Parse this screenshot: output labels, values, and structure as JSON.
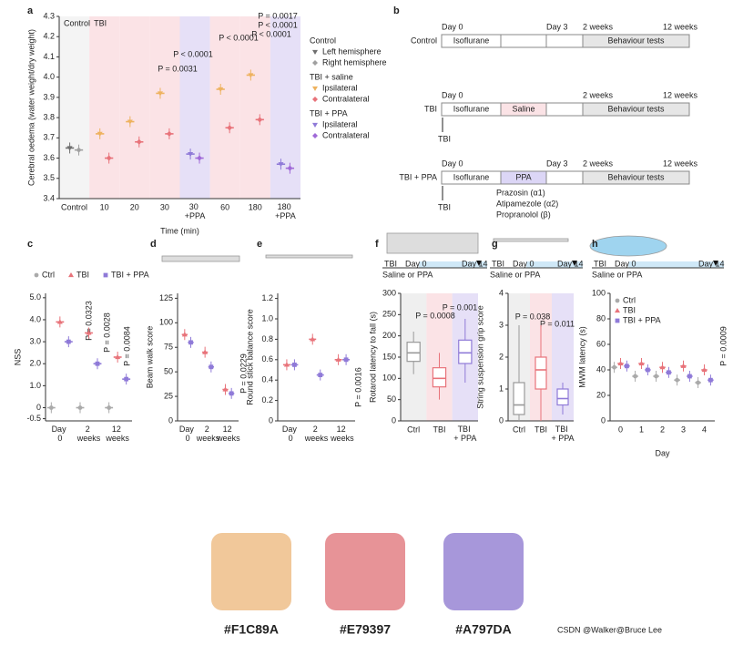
{
  "chart_data": [
    {
      "type": "strip",
      "panel": "a",
      "ylabel": "Cerebral oedema (water weight/dry weight)",
      "xlabel": "Time (min)",
      "regions": [
        "Control",
        "TBI"
      ],
      "categories": [
        "Control",
        "10",
        "20",
        "30",
        "30 +PPA",
        "60",
        "180",
        "180 +PPA"
      ],
      "ylim": [
        3.4,
        4.3
      ],
      "yticks": [
        3.4,
        3.5,
        3.6,
        3.7,
        3.8,
        3.9,
        {
          "value": 4,
          "label": "4.0"
        },
        4.1,
        4.2,
        4.3
      ],
      "legend_groups": [
        "Control",
        "TBI + saline",
        "TBI + PPA"
      ],
      "series": [
        {
          "name": "Left hemisphere",
          "color": "#6f6f6f",
          "marker": "triangle-down",
          "values": [
            3.65,
            null,
            null,
            null,
            null,
            null,
            null,
            null
          ]
        },
        {
          "name": "Right hemisphere",
          "color": "#a0a0a0",
          "marker": "diamond",
          "values": [
            3.64,
            null,
            null,
            null,
            null,
            null,
            null,
            null
          ]
        },
        {
          "name": "Ipsilateral",
          "color": "#eeb25f",
          "marker": "triangle-down",
          "values": [
            null,
            3.72,
            3.78,
            3.92,
            null,
            3.94,
            4.01,
            null
          ]
        },
        {
          "name": "Contralateral",
          "color": "#e8737a",
          "marker": "diamond",
          "values": [
            null,
            3.6,
            3.68,
            3.72,
            null,
            3.75,
            3.79,
            null
          ]
        },
        {
          "name": "Ipsilateral",
          "color": "#8f7ad8",
          "marker": "triangle-down",
          "values": [
            null,
            null,
            null,
            null,
            3.62,
            null,
            null,
            3.57
          ]
        },
        {
          "name": "Contralateral",
          "color": "#a06ad8",
          "marker": "diamond",
          "values": [
            null,
            null,
            null,
            null,
            3.6,
            null,
            null,
            3.55
          ]
        }
      ],
      "annotations": [
        "P = 0.0031",
        "P < 0.0001",
        "P < 0.0001",
        "P = 0.0017",
        "P < 0.0001",
        "P < 0.0001"
      ]
    },
    {
      "type": "strip",
      "panel": "c",
      "ylabel": "NSS",
      "categories": [
        "Day 0",
        "2 weeks",
        "12 weeks"
      ],
      "ylim": [
        -0.6,
        5.2
      ],
      "yticks": [
        -0.5,
        0,
        {
          "value": 1,
          "label": "1.0"
        },
        {
          "value": 2,
          "label": "2.0"
        },
        {
          "value": 3,
          "label": "3.0"
        },
        {
          "value": 4,
          "label": "4.0"
        },
        {
          "value": 5,
          "label": "5.0"
        }
      ],
      "series": [
        {
          "name": "Ctrl",
          "color": "#aaaaaa",
          "marker": "circle",
          "values": [
            0,
            0,
            0
          ]
        },
        {
          "name": "TBI",
          "color": "#e8737a",
          "marker": "triangle",
          "values": [
            3.9,
            3.4,
            2.3
          ]
        },
        {
          "name": "TBI + PPA",
          "color": "#8f7ad8",
          "marker": "square",
          "values": [
            3,
            2,
            1.3
          ]
        }
      ],
      "annotations": [
        "P = 0.0323",
        "P = 0.0028",
        "P = 0.0084"
      ]
    },
    {
      "type": "strip",
      "panel": "d",
      "ylabel": "Beam walk score",
      "categories": [
        "Day 0",
        "2 weeks",
        "12 weeks"
      ],
      "ylim": [
        0,
        130
      ],
      "yticks": [
        0,
        25,
        50,
        75,
        100,
        125
      ],
      "series": [
        {
          "name": "TBI",
          "color": "#e8737a",
          "marker": "triangle",
          "values": [
            88,
            70,
            32
          ]
        },
        {
          "name": "TBI + PPA",
          "color": "#8f7ad8",
          "marker": "square",
          "values": [
            80,
            55,
            28
          ]
        }
      ],
      "annotations": [
        "P = 0.0229"
      ]
    },
    {
      "type": "strip",
      "panel": "e",
      "ylabel": "Round stick balance score",
      "categories": [
        "Day 0",
        "2 weeks",
        "12 weeks"
      ],
      "ylim": [
        0,
        1.25
      ],
      "yticks": [
        0,
        0.2,
        0.4,
        0.6,
        0.8,
        {
          "value": 1,
          "label": "1.0"
        },
        1.2
      ],
      "series": [
        {
          "name": "TBI",
          "color": "#e8737a",
          "marker": "triangle",
          "values": [
            0.55,
            0.8,
            0.6
          ]
        },
        {
          "name": "TBI + PPA",
          "color": "#8f7ad8",
          "marker": "square",
          "values": [
            0.55,
            0.45,
            0.6
          ]
        }
      ],
      "annotations": [
        "P = 0.0016"
      ]
    },
    {
      "type": "box",
      "panel": "f",
      "ylabel": "Rotarod latency to fall (s)",
      "categories": [
        "Ctrl",
        "TBI",
        "TBI + PPA"
      ],
      "colors": [
        "#999999",
        "#e8737a",
        "#8f7ad8"
      ],
      "timeline": [
        "TBI",
        "Day 0",
        "Day 14",
        "Saline or PPA"
      ],
      "ylim": [
        0,
        300
      ],
      "yticks": [
        0,
        50,
        100,
        150,
        200,
        250,
        300
      ],
      "values": [
        160,
        100,
        160
      ],
      "q1": [
        140,
        80,
        135
      ],
      "q3": [
        185,
        125,
        190
      ],
      "min": [
        110,
        50,
        90
      ],
      "max": [
        210,
        160,
        240
      ],
      "annotations": [
        "P = 0.0008",
        "P = 0.001"
      ]
    },
    {
      "type": "box",
      "panel": "g",
      "ylabel": "String suspension grip score",
      "categories": [
        "Ctrl",
        "TBI",
        "TBI + PPA"
      ],
      "colors": [
        "#999999",
        "#e8737a",
        "#8f7ad8"
      ],
      "timeline": [
        "TBI",
        "Day 0",
        "Day 14",
        "Saline or PPA"
      ],
      "ylim": [
        0,
        4
      ],
      "yticks": [
        0,
        1,
        2,
        3,
        4
      ],
      "values": [
        0.5,
        1.6,
        0.7
      ],
      "q1": [
        0.2,
        1,
        0.5
      ],
      "q3": [
        1.2,
        2,
        1
      ],
      "min": [
        0,
        0,
        0.2
      ],
      "max": [
        3,
        3,
        1.2
      ],
      "annotations": [
        "P = 0.038",
        "P = 0.011"
      ]
    },
    {
      "type": "strip",
      "panel": "h",
      "ylabel": "MWM latency (s)",
      "xlabel": "Day",
      "categories": [
        "0",
        "1",
        "2",
        "3",
        "4"
      ],
      "timeline": [
        "TBI",
        "Day 0",
        "Day 14",
        "Saline or PPA"
      ],
      "ylim": [
        0,
        100
      ],
      "yticks": [
        0,
        20,
        40,
        60,
        80,
        100
      ],
      "series": [
        {
          "name": "Ctrl",
          "color": "#aaaaaa",
          "marker": "circle",
          "values": [
            42,
            35,
            35,
            32,
            30
          ]
        },
        {
          "name": "TBI",
          "color": "#e8737a",
          "marker": "triangle",
          "values": [
            45,
            45,
            42,
            43,
            40
          ]
        },
        {
          "name": "TBI + PPA",
          "color": "#8f7ad8",
          "marker": "square",
          "values": [
            43,
            40,
            38,
            35,
            32
          ]
        }
      ],
      "annotations": [
        "P = 0.0009"
      ]
    }
  ],
  "diagram": {
    "panel": "b",
    "rows": [
      {
        "label": "Control",
        "days": [
          "Day 0",
          "Day 3",
          "2 weeks",
          "12 weeks"
        ],
        "segments": [
          "Isoflurane",
          "Behaviour tests"
        ]
      },
      {
        "label": "TBI",
        "days": [
          "Day 0",
          "2 weeks",
          "12 weeks"
        ],
        "segments": [
          "Isoflurane",
          "Saline",
          "Behaviour tests"
        ],
        "event": "TBI"
      },
      {
        "label": "TBI + PPA",
        "days": [
          "Day 0",
          "Day 3",
          "2 weeks",
          "12 weeks"
        ],
        "segments": [
          "Isoflurane",
          "PPA",
          "Behaviour tests"
        ],
        "event": "TBI",
        "drugs": [
          "Prazosin (α1)",
          "Atipamezole (α2)",
          "Propranolol (β)"
        ]
      }
    ]
  },
  "palette": {
    "colors": [
      "#F1C89A",
      "#E79397",
      "#A797DA"
    ]
  },
  "watermark": "CSDN @Walker@Bruce Lee"
}
